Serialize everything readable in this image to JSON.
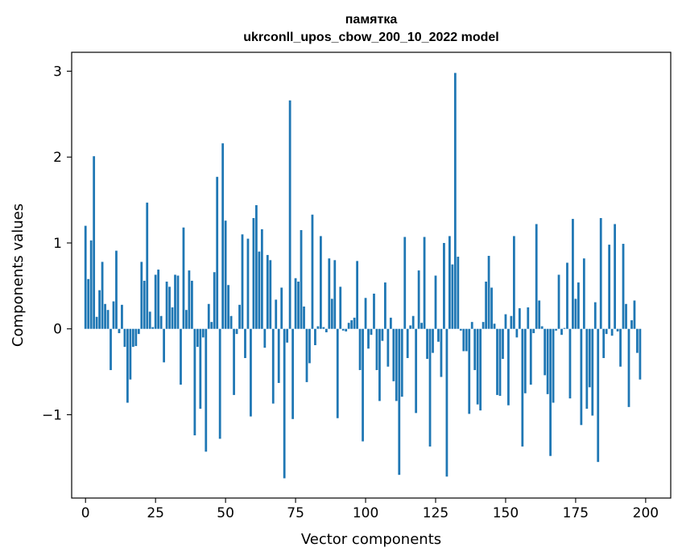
{
  "chart_data": {
    "type": "bar",
    "title": [
      "памятка",
      "ukrconll_upos_cbow_200_10_2022 model"
    ],
    "xlabel": "Vector components",
    "ylabel": "Components values",
    "xlim": [
      -4.95,
      208.95
    ],
    "ylim": [
      -1.97,
      3.22
    ],
    "xticks": [
      0,
      25,
      50,
      75,
      100,
      125,
      150,
      175,
      200
    ],
    "yticks": [
      -1,
      0,
      1,
      2,
      3
    ],
    "ytick_labels": [
      "−1",
      "0",
      "1",
      "2",
      "3"
    ],
    "bar_color": "#1f77b4",
    "grid": false,
    "values": [
      1.2,
      0.58,
      1.03,
      2.01,
      0.14,
      0.45,
      0.78,
      0.29,
      0.22,
      -0.48,
      0.32,
      0.91,
      -0.05,
      0.28,
      -0.21,
      -0.86,
      -0.59,
      -0.21,
      -0.2,
      -0.06,
      0.78,
      0.56,
      1.47,
      0.2,
      0.02,
      0.63,
      0.69,
      0.15,
      -0.39,
      0.55,
      0.49,
      0.25,
      0.63,
      0.62,
      -0.65,
      1.18,
      0.22,
      0.68,
      0.56,
      -1.24,
      -0.21,
      -0.93,
      -0.1,
      -1.43,
      0.29,
      0.08,
      0.66,
      1.77,
      -1.28,
      2.16,
      1.26,
      0.51,
      0.15,
      -0.77,
      -0.06,
      0.28,
      1.1,
      -0.34,
      1.05,
      -1.02,
      1.29,
      1.44,
      0.9,
      1.16,
      -0.22,
      0.86,
      0.8,
      -0.87,
      0.34,
      -0.63,
      0.48,
      -1.74,
      -0.16,
      2.66,
      -1.05,
      0.59,
      0.55,
      1.15,
      0.26,
      -0.62,
      -0.4,
      1.33,
      -0.19,
      0.03,
      1.08,
      0.02,
      -0.04,
      0.82,
      0.35,
      0.8,
      -1.04,
      0.49,
      -0.02,
      -0.03,
      0.07,
      0.1,
      0.13,
      0.79,
      -0.48,
      -1.31,
      0.36,
      -0.23,
      -0.07,
      0.41,
      -0.48,
      -0.84,
      -0.14,
      0.54,
      -0.44,
      0.13,
      -0.61,
      -0.84,
      -1.7,
      -0.79,
      1.07,
      -0.34,
      0.04,
      0.15,
      -0.98,
      0.68,
      0.07,
      1.07,
      -0.35,
      -1.37,
      -0.28,
      0.62,
      -0.15,
      -0.56,
      1.0,
      -1.72,
      1.08,
      0.75,
      2.98,
      0.84,
      -0.02,
      -0.26,
      -0.26,
      -0.99,
      0.08,
      -0.48,
      -0.88,
      -0.95,
      0.08,
      0.55,
      0.85,
      0.48,
      0.06,
      -0.77,
      -0.78,
      -0.35,
      0.17,
      -0.89,
      0.15,
      1.08,
      -0.1,
      0.24,
      -1.37,
      -0.75,
      0.25,
      -0.65,
      -0.05,
      1.22,
      0.33,
      0.03,
      -0.54,
      -0.76,
      -1.48,
      -0.86,
      -0.02,
      0.63,
      -0.07,
      0.01,
      0.77,
      -0.81,
      1.28,
      0.35,
      0.54,
      -1.12,
      0.82,
      -0.93,
      -0.68,
      -1.01,
      0.31,
      -1.55,
      1.29,
      -0.34,
      -0.06,
      0.98,
      -0.08,
      1.22,
      -0.03,
      -0.44,
      0.99,
      0.29,
      -0.91,
      0.1,
      0.33,
      -0.28,
      -0.59
    ]
  }
}
